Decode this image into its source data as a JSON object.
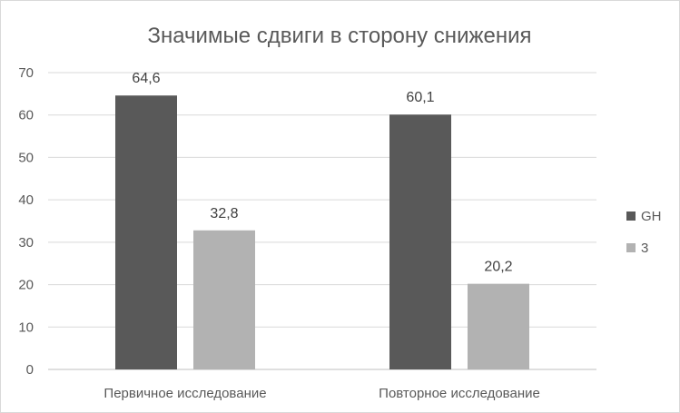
{
  "chart_data": {
    "type": "bar",
    "title": "Значимые сдвиги в сторону снижения",
    "categories": [
      "Первичное исследование",
      "Повторное исследование"
    ],
    "series": [
      {
        "name": "GH",
        "values": [
          64.6,
          60.1
        ],
        "labels": [
          "64,6",
          "60,1"
        ],
        "color": "#595959"
      },
      {
        "name": "3",
        "values": [
          32.8,
          20.2
        ],
        "labels": [
          "32,8",
          "20,2"
        ],
        "color": "#b2b2b2"
      }
    ],
    "ylim": [
      0,
      70
    ],
    "yticks": [
      "0",
      "10",
      "20",
      "30",
      "40",
      "50",
      "60",
      "70"
    ],
    "grid": true,
    "legend": "right"
  }
}
